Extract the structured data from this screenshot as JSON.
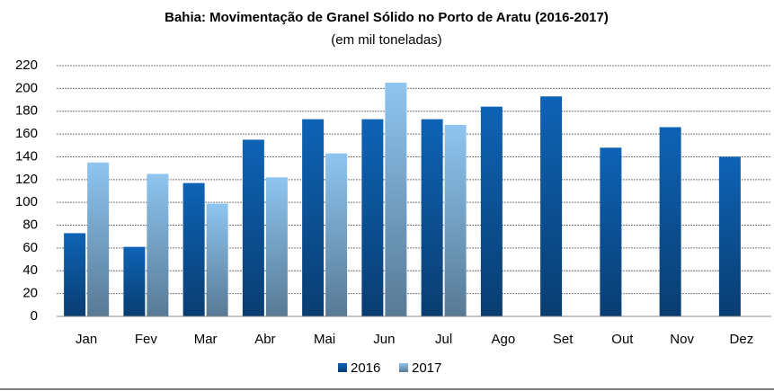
{
  "chart_data": {
    "type": "bar",
    "title": "Bahia: Movimentação de Granel Sólido no Porto de Aratu (2016-2017)",
    "subtitle": "(em mil toneladas)",
    "categories": [
      "Jan",
      "Fev",
      "Mar",
      "Abr",
      "Mai",
      "Jun",
      "Jul",
      "Ago",
      "Set",
      "Out",
      "Nov",
      "Dez"
    ],
    "series": [
      {
        "name": "2016",
        "color": "#0e63b6",
        "values": [
          73,
          61,
          117,
          155,
          173,
          173,
          173,
          184,
          193,
          148,
          166,
          140
        ]
      },
      {
        "name": "2017",
        "color": "#8ec5f0",
        "values": [
          135,
          125,
          99,
          122,
          143,
          205,
          168,
          null,
          null,
          null,
          null,
          null
        ]
      }
    ],
    "ylim": [
      0,
      220
    ],
    "yticks": [
      0,
      20,
      40,
      60,
      80,
      100,
      120,
      140,
      160,
      180,
      200,
      220
    ],
    "grid": true,
    "legend": "bottom"
  }
}
